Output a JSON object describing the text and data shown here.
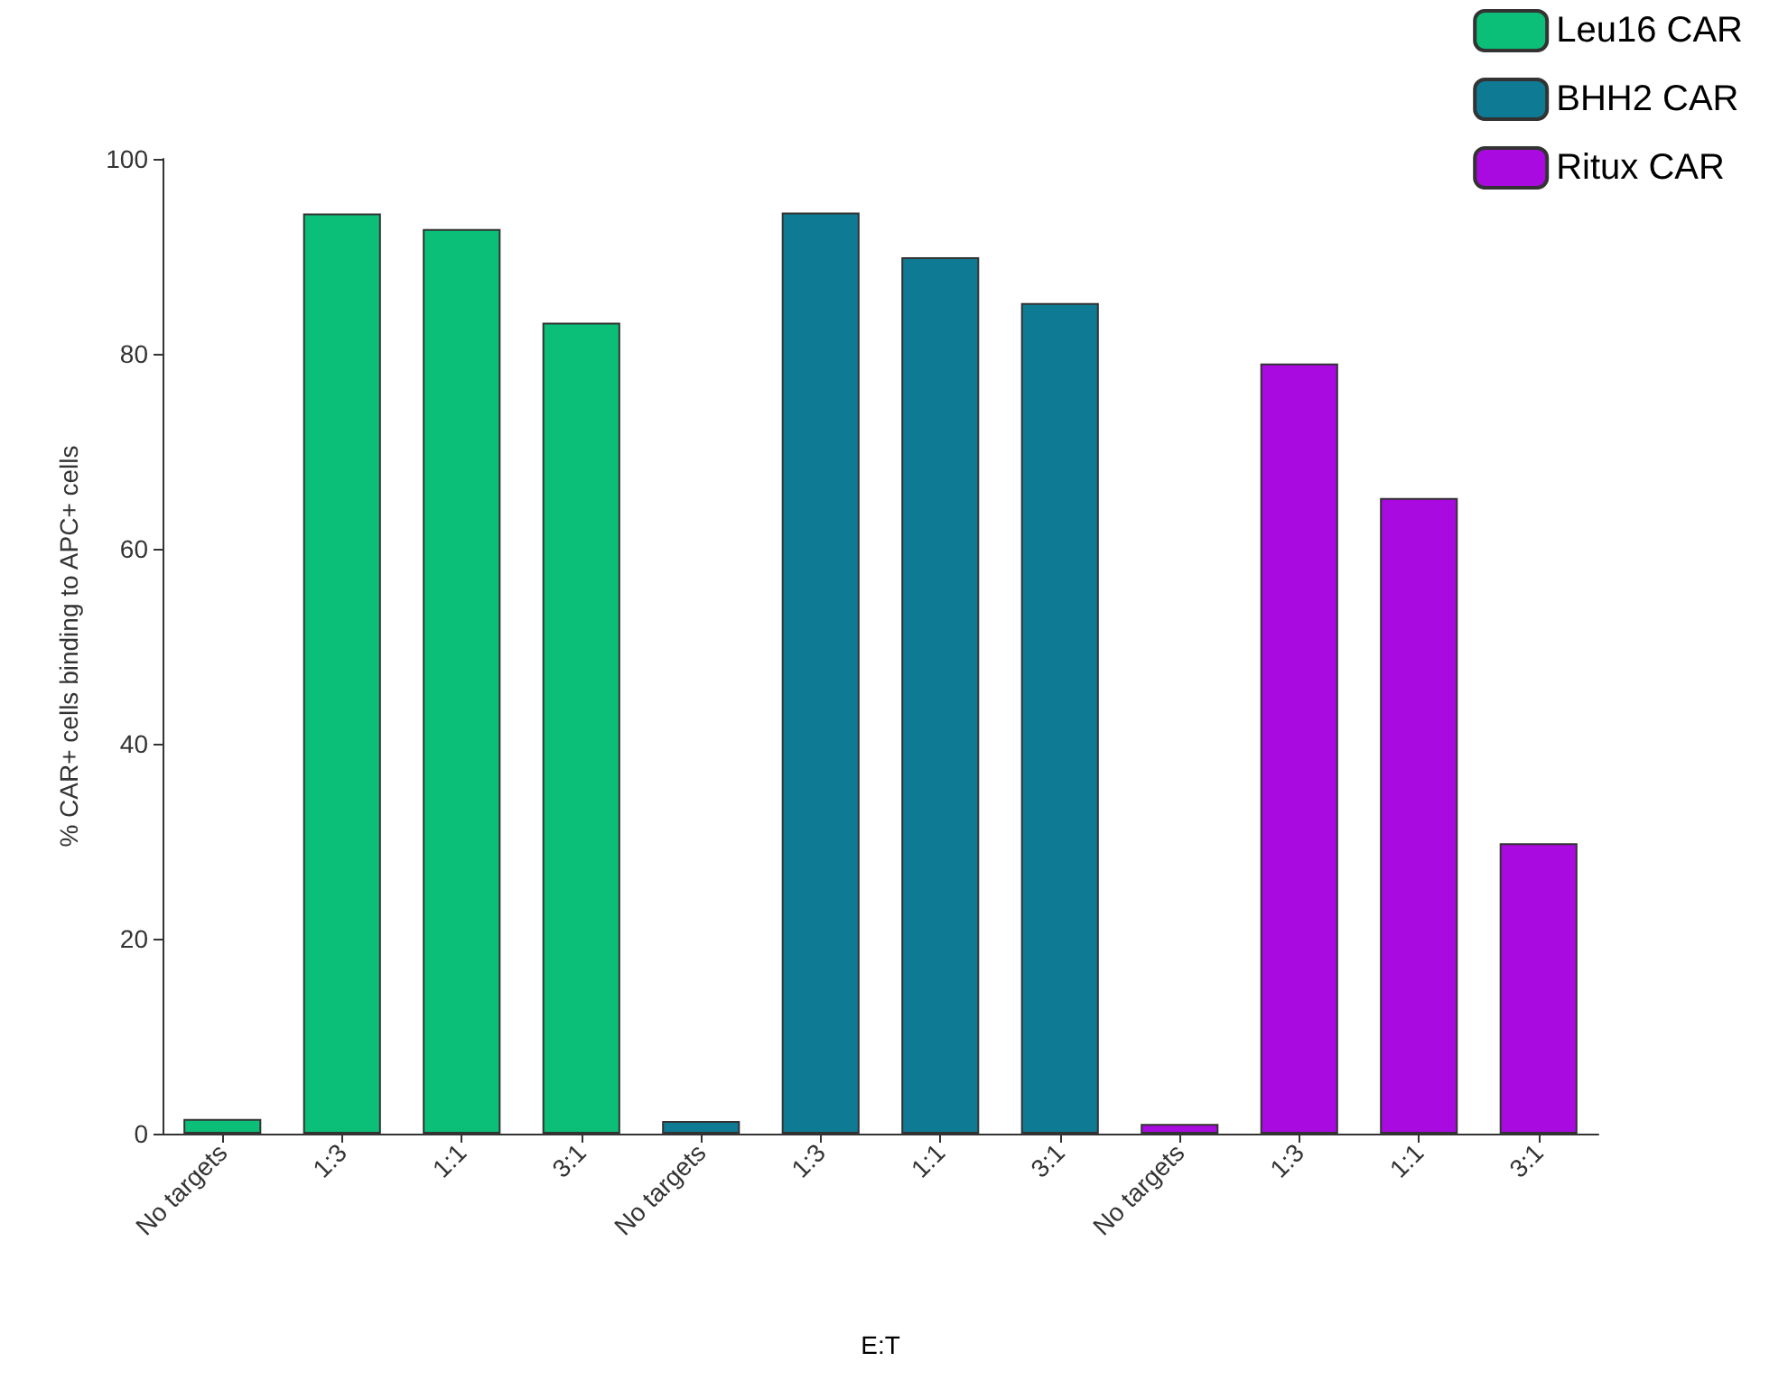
{
  "chart_data": {
    "type": "bar",
    "xlabel": "E:T",
    "ylabel": "% CAR+ cells binding to APC+ cells",
    "categories": [
      "No targets",
      "1:3",
      "1:1",
      "3:1",
      "No targets",
      "1:3",
      "1:1",
      "3:1",
      "No targets",
      "1:3",
      "1:1",
      "3:1"
    ],
    "series": [
      {
        "name": "Leu16 CAR",
        "color": "#0bbf78",
        "values": [
          1.5,
          94.4,
          92.8,
          83.2,
          null,
          null,
          null,
          null,
          null,
          null,
          null,
          null
        ]
      },
      {
        "name": "BHH2 CAR",
        "color": "#0e7a94",
        "values": [
          null,
          null,
          null,
          null,
          1.3,
          94.5,
          89.9,
          85.2,
          null,
          null,
          null,
          null
        ]
      },
      {
        "name": "Ritux CAR",
        "color": "#a90ae0",
        "values": [
          null,
          null,
          null,
          null,
          null,
          null,
          null,
          null,
          1.0,
          79,
          65.2,
          29.8
        ]
      }
    ],
    "ylim": [
      0,
      100
    ],
    "yticks": [
      0,
      20,
      40,
      60,
      80,
      100
    ],
    "grid": false,
    "legend": "top right"
  }
}
